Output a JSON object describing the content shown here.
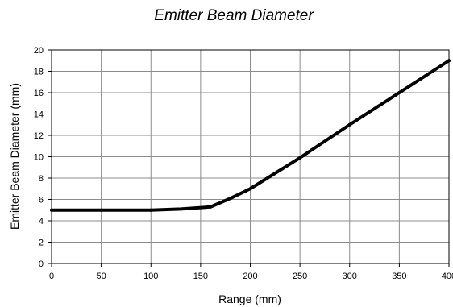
{
  "chart_data": {
    "type": "line",
    "title": "Emitter Beam Diameter",
    "xlabel": "Range (mm)",
    "ylabel": "Emitter Beam Diameter (mm)",
    "xlim": [
      0,
      400
    ],
    "ylim": [
      0,
      20
    ],
    "xticks": [
      0,
      50,
      100,
      150,
      200,
      250,
      300,
      350,
      400
    ],
    "yticks": [
      0,
      2,
      4,
      6,
      8,
      10,
      12,
      14,
      16,
      18,
      20
    ],
    "grid": true,
    "series": [
      {
        "color": "#000000",
        "points": [
          [
            0,
            5.0
          ],
          [
            50,
            5.0
          ],
          [
            100,
            5.0
          ],
          [
            130,
            5.1
          ],
          [
            160,
            5.3
          ],
          [
            180,
            6.1
          ],
          [
            200,
            7.0
          ],
          [
            250,
            9.9
          ],
          [
            300,
            13.0
          ],
          [
            350,
            16.0
          ],
          [
            400,
            19.0
          ]
        ]
      }
    ]
  }
}
